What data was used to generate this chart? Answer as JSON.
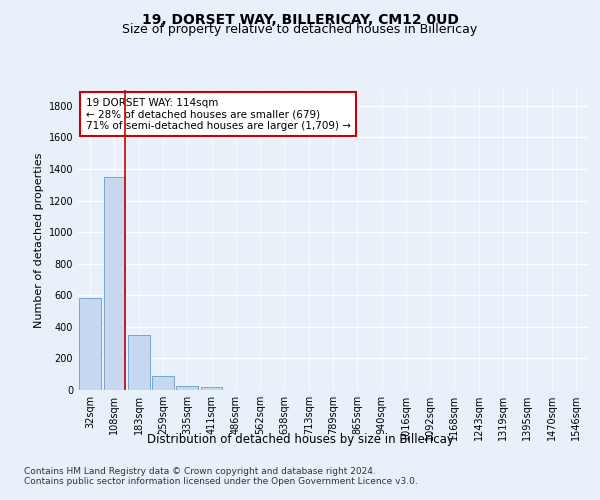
{
  "title": "19, DORSET WAY, BILLERICAY, CM12 0UD",
  "subtitle": "Size of property relative to detached houses in Billericay",
  "xlabel": "Distribution of detached houses by size in Billericay",
  "ylabel": "Number of detached properties",
  "bar_labels": [
    "32sqm",
    "108sqm",
    "183sqm",
    "259sqm",
    "335sqm",
    "411sqm",
    "486sqm",
    "562sqm",
    "638sqm",
    "713sqm",
    "789sqm",
    "865sqm",
    "940sqm",
    "1016sqm",
    "1092sqm",
    "1168sqm",
    "1243sqm",
    "1319sqm",
    "1395sqm",
    "1470sqm",
    "1546sqm"
  ],
  "bar_values": [
    580,
    1350,
    350,
    88,
    28,
    20,
    0,
    0,
    0,
    0,
    0,
    0,
    0,
    0,
    0,
    0,
    0,
    0,
    0,
    0,
    0
  ],
  "bar_color": "#c5d8f0",
  "bar_edge_color": "#6699cc",
  "property_line_color": "#cc0000",
  "annotation_text": "19 DORSET WAY: 114sqm\n← 28% of detached houses are smaller (679)\n71% of semi-detached houses are larger (1,709) →",
  "annotation_box_color": "#ffffff",
  "annotation_box_edge_color": "#cc0000",
  "ylim": [
    0,
    1900
  ],
  "yticks": [
    0,
    200,
    400,
    600,
    800,
    1000,
    1200,
    1400,
    1600,
    1800
  ],
  "footer_line1": "Contains HM Land Registry data © Crown copyright and database right 2024.",
  "footer_line2": "Contains public sector information licensed under the Open Government Licence v3.0.",
  "background_color": "#e8f0fa",
  "plot_bg_color": "#e8f0fa",
  "grid_color": "#ffffff",
  "title_fontsize": 10,
  "subtitle_fontsize": 9,
  "xlabel_fontsize": 8.5,
  "ylabel_fontsize": 8,
  "tick_fontsize": 7,
  "annotation_fontsize": 7.5,
  "footer_fontsize": 6.5
}
